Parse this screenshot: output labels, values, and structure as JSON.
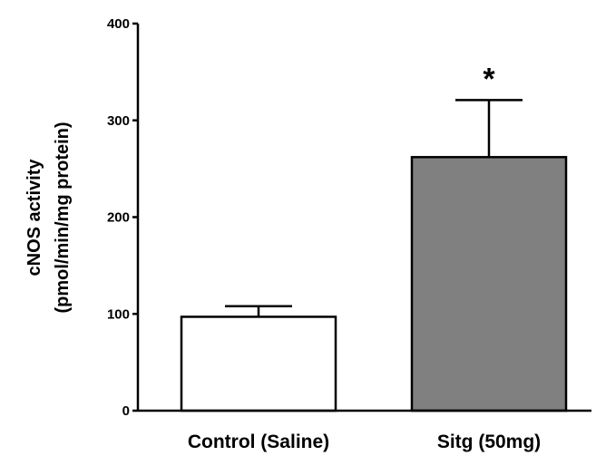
{
  "chart_data": {
    "type": "bar",
    "categories": [
      "Control (Saline)",
      "Sitg (50mg)"
    ],
    "values": [
      97,
      262
    ],
    "error_upper": [
      108,
      321
    ],
    "bar_colors": [
      "#ffffff",
      "#808080"
    ],
    "ylabel_lines": [
      "cNOS activity",
      "(pmol/min/mg protein)"
    ],
    "ylim": [
      0,
      400
    ],
    "yticks": [
      0,
      100,
      200,
      300,
      400
    ],
    "annotations": [
      {
        "category_index": 1,
        "text": "*"
      }
    ],
    "grid": false,
    "legend": "none"
  }
}
